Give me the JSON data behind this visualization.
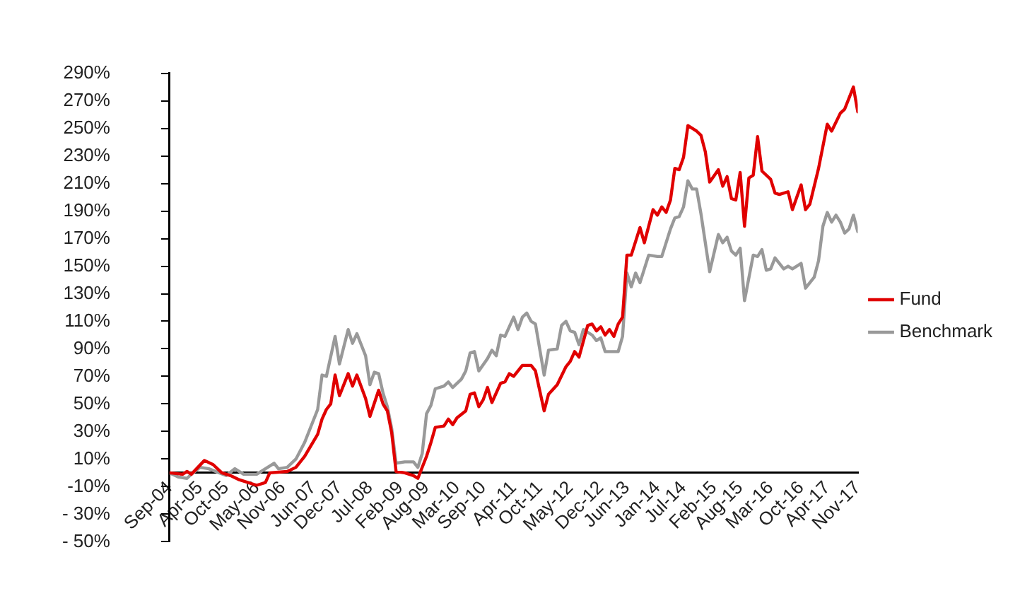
{
  "chart_data": {
    "type": "line",
    "xlim": [
      "2004-09",
      "2017-11"
    ],
    "xticks": [
      {
        "value": "2004-09",
        "label": "Sep-04"
      },
      {
        "value": "2005-04",
        "label": "Apr-05"
      },
      {
        "value": "2005-10",
        "label": "Oct-05"
      },
      {
        "value": "2006-05",
        "label": "May-06"
      },
      {
        "value": "2006-11",
        "label": "Nov-06"
      },
      {
        "value": "2007-06",
        "label": "Jun-07"
      },
      {
        "value": "2007-12",
        "label": "Dec-07"
      },
      {
        "value": "2008-07",
        "label": "Jul-08"
      },
      {
        "value": "2009-02",
        "label": "Feb-09"
      },
      {
        "value": "2009-08",
        "label": "Aug-09"
      },
      {
        "value": "2010-03",
        "label": "Mar-10"
      },
      {
        "value": "2010-09",
        "label": "Sep-10"
      },
      {
        "value": "2011-04",
        "label": "Apr-11"
      },
      {
        "value": "2011-10",
        "label": "Oct-11"
      },
      {
        "value": "2012-05",
        "label": "May-12"
      },
      {
        "value": "2012-12",
        "label": "Dec-12"
      },
      {
        "value": "2013-06",
        "label": "Jun-13"
      },
      {
        "value": "2014-01",
        "label": "Jan-14"
      },
      {
        "value": "2014-07",
        "label": "Jul-14"
      },
      {
        "value": "2015-02",
        "label": "Feb-15"
      },
      {
        "value": "2015-08",
        "label": "Aug-15"
      },
      {
        "value": "2016-03",
        "label": "Mar-16"
      },
      {
        "value": "2016-10",
        "label": "Oct-16"
      },
      {
        "value": "2017-04",
        "label": "Apr-17"
      },
      {
        "value": "2017-11",
        "label": "Nov-17"
      }
    ],
    "ylim": [
      -50,
      290
    ],
    "yticks": [
      {
        "value": -50,
        "label": "- 50%"
      },
      {
        "value": -30,
        "label": "- 30%"
      },
      {
        "value": -10,
        "label": "-10%"
      },
      {
        "value": 10,
        "label": "10%"
      },
      {
        "value": 30,
        "label": "30%"
      },
      {
        "value": 50,
        "label": "50%"
      },
      {
        "value": 70,
        "label": "70%"
      },
      {
        "value": 90,
        "label": "90%"
      },
      {
        "value": 110,
        "label": "110%"
      },
      {
        "value": 130,
        "label": "130%"
      },
      {
        "value": 150,
        "label": "150%"
      },
      {
        "value": 170,
        "label": "170%"
      },
      {
        "value": 190,
        "label": "190%"
      },
      {
        "value": 210,
        "label": "210%"
      },
      {
        "value": 230,
        "label": "230%"
      },
      {
        "value": 250,
        "label": "250%"
      },
      {
        "value": 270,
        "label": "270%"
      },
      {
        "value": 290,
        "label": "290%"
      }
    ],
    "grid": false,
    "legend": "right",
    "marker": "none",
    "line_style": "solid",
    "series": [
      {
        "name": "Fund",
        "color": "#e00000",
        "x": [
          "2004-09",
          "2004-12",
          "2005-01",
          "2005-02",
          "2005-05",
          "2005-07",
          "2005-09",
          "2005-11",
          "2006-01",
          "2006-05",
          "2006-07",
          "2006-08",
          "2006-12",
          "2007-02",
          "2007-04",
          "2007-07",
          "2007-08",
          "2007-09",
          "2007-10",
          "2007-11",
          "2007-12",
          "2008-02",
          "2008-03",
          "2008-04",
          "2008-06",
          "2008-07",
          "2008-09",
          "2008-10",
          "2008-11",
          "2008-12",
          "2009-01",
          "2009-03",
          "2009-05",
          "2009-06",
          "2009-08",
          "2009-09",
          "2009-10",
          "2009-12",
          "2010-01",
          "2010-02",
          "2010-03",
          "2010-05",
          "2010-06",
          "2010-07",
          "2010-08",
          "2010-09",
          "2010-10",
          "2010-11",
          "2011-01",
          "2011-02",
          "2011-03",
          "2011-04",
          "2011-06",
          "2011-08",
          "2011-09",
          "2011-11",
          "2011-12",
          "2012-02",
          "2012-04",
          "2012-05",
          "2012-06",
          "2012-07",
          "2012-09",
          "2012-10",
          "2012-11",
          "2012-12",
          "2013-01",
          "2013-02",
          "2013-03",
          "2013-04",
          "2013-05",
          "2013-06",
          "2013-07",
          "2013-09",
          "2013-10",
          "2013-12",
          "2014-01",
          "2014-02",
          "2014-03",
          "2014-04",
          "2014-05",
          "2014-06",
          "2014-07",
          "2014-08",
          "2014-10",
          "2014-11",
          "2014-12",
          "2015-01",
          "2015-03",
          "2015-04",
          "2015-05",
          "2015-06",
          "2015-07",
          "2015-08",
          "2015-09",
          "2015-10",
          "2015-11",
          "2015-12",
          "2016-01",
          "2016-03",
          "2016-04",
          "2016-05",
          "2016-07",
          "2016-08",
          "2016-10",
          "2016-11",
          "2016-12",
          "2017-02",
          "2017-04",
          "2017-05",
          "2017-07",
          "2017-08",
          "2017-10",
          "2017-11"
        ],
        "values": [
          0,
          -1,
          1,
          -1,
          9,
          6,
          0,
          -2,
          -5,
          -9,
          -7,
          0,
          1,
          4,
          12,
          28,
          39,
          46,
          50,
          71,
          56,
          72,
          63,
          71,
          54,
          41,
          60,
          50,
          45,
          29,
          1,
          0,
          -2,
          -4,
          12,
          22,
          33,
          34,
          39,
          35,
          40,
          45,
          57,
          58,
          48,
          53,
          62,
          51,
          65,
          66,
          72,
          70,
          78,
          78,
          74,
          45,
          57,
          64,
          77,
          81,
          88,
          84,
          107,
          108,
          103,
          106,
          100,
          104,
          99,
          108,
          113,
          158,
          158,
          178,
          167,
          191,
          187,
          193,
          189,
          198,
          221,
          220,
          229,
          252,
          248,
          245,
          233,
          211,
          220,
          208,
          215,
          199,
          198,
          218,
          179,
          214,
          216,
          244,
          219,
          213,
          203,
          202,
          204,
          191,
          209,
          191,
          195,
          221,
          253,
          248,
          261,
          264,
          280,
          262
        ]
      },
      {
        "name": "Benchmark",
        "color": "#999999",
        "x": [
          "2004-09",
          "2004-11",
          "2005-01",
          "2005-02",
          "2005-04",
          "2005-06",
          "2005-10",
          "2005-12",
          "2006-02",
          "2006-05",
          "2006-07",
          "2006-09",
          "2006-10",
          "2006-12",
          "2007-02",
          "2007-04",
          "2007-07",
          "2007-08",
          "2007-09",
          "2007-11",
          "2007-12",
          "2008-02",
          "2008-03",
          "2008-04",
          "2008-06",
          "2008-07",
          "2008-08",
          "2008-09",
          "2008-10",
          "2008-11",
          "2008-12",
          "2009-01",
          "2009-03",
          "2009-05",
          "2009-06",
          "2009-07",
          "2009-08",
          "2009-09",
          "2009-10",
          "2009-12",
          "2010-01",
          "2010-02",
          "2010-04",
          "2010-05",
          "2010-06",
          "2010-07",
          "2010-08",
          "2010-10",
          "2010-11",
          "2010-12",
          "2011-01",
          "2011-02",
          "2011-04",
          "2011-05",
          "2011-06",
          "2011-07",
          "2011-08",
          "2011-09",
          "2011-11",
          "2011-12",
          "2012-02",
          "2012-03",
          "2012-04",
          "2012-05",
          "2012-06",
          "2012-07",
          "2012-08",
          "2012-10",
          "2012-11",
          "2012-12",
          "2013-01",
          "2013-04",
          "2013-05",
          "2013-06",
          "2013-07",
          "2013-08",
          "2013-09",
          "2013-11",
          "2014-01",
          "2014-02",
          "2014-04",
          "2014-05",
          "2014-06",
          "2014-07",
          "2014-08",
          "2014-09",
          "2014-10",
          "2014-11",
          "2015-01",
          "2015-03",
          "2015-04",
          "2015-05",
          "2015-06",
          "2015-07",
          "2015-08",
          "2015-09",
          "2015-11",
          "2015-12",
          "2016-01",
          "2016-02",
          "2016-03",
          "2016-04",
          "2016-06",
          "2016-07",
          "2016-08",
          "2016-10",
          "2016-11",
          "2017-01",
          "2017-02",
          "2017-03",
          "2017-04",
          "2017-05",
          "2017-06",
          "2017-07",
          "2017-08",
          "2017-09",
          "2017-10",
          "2017-11"
        ],
        "values": [
          0,
          -3,
          -4,
          -1,
          4,
          3,
          -2,
          3,
          -1,
          -1,
          3,
          7,
          3,
          4,
          10,
          22,
          46,
          71,
          70,
          99,
          79,
          104,
          94,
          101,
          85,
          64,
          73,
          72,
          58,
          48,
          32,
          7,
          8,
          8,
          4,
          14,
          43,
          49,
          61,
          63,
          66,
          62,
          68,
          74,
          87,
          88,
          74,
          83,
          89,
          85,
          100,
          99,
          113,
          104,
          113,
          116,
          110,
          108,
          71,
          89,
          90,
          107,
          110,
          103,
          102,
          93,
          104,
          100,
          96,
          98,
          88,
          88,
          99,
          145,
          135,
          145,
          138,
          158,
          157,
          157,
          177,
          185,
          186,
          193,
          212,
          206,
          206,
          188,
          146,
          173,
          167,
          171,
          161,
          158,
          163,
          125,
          158,
          157,
          162,
          147,
          148,
          156,
          148,
          150,
          148,
          152,
          134,
          142,
          154,
          179,
          189,
          182,
          187,
          182,
          174,
          177,
          187,
          175
        ]
      }
    ]
  }
}
